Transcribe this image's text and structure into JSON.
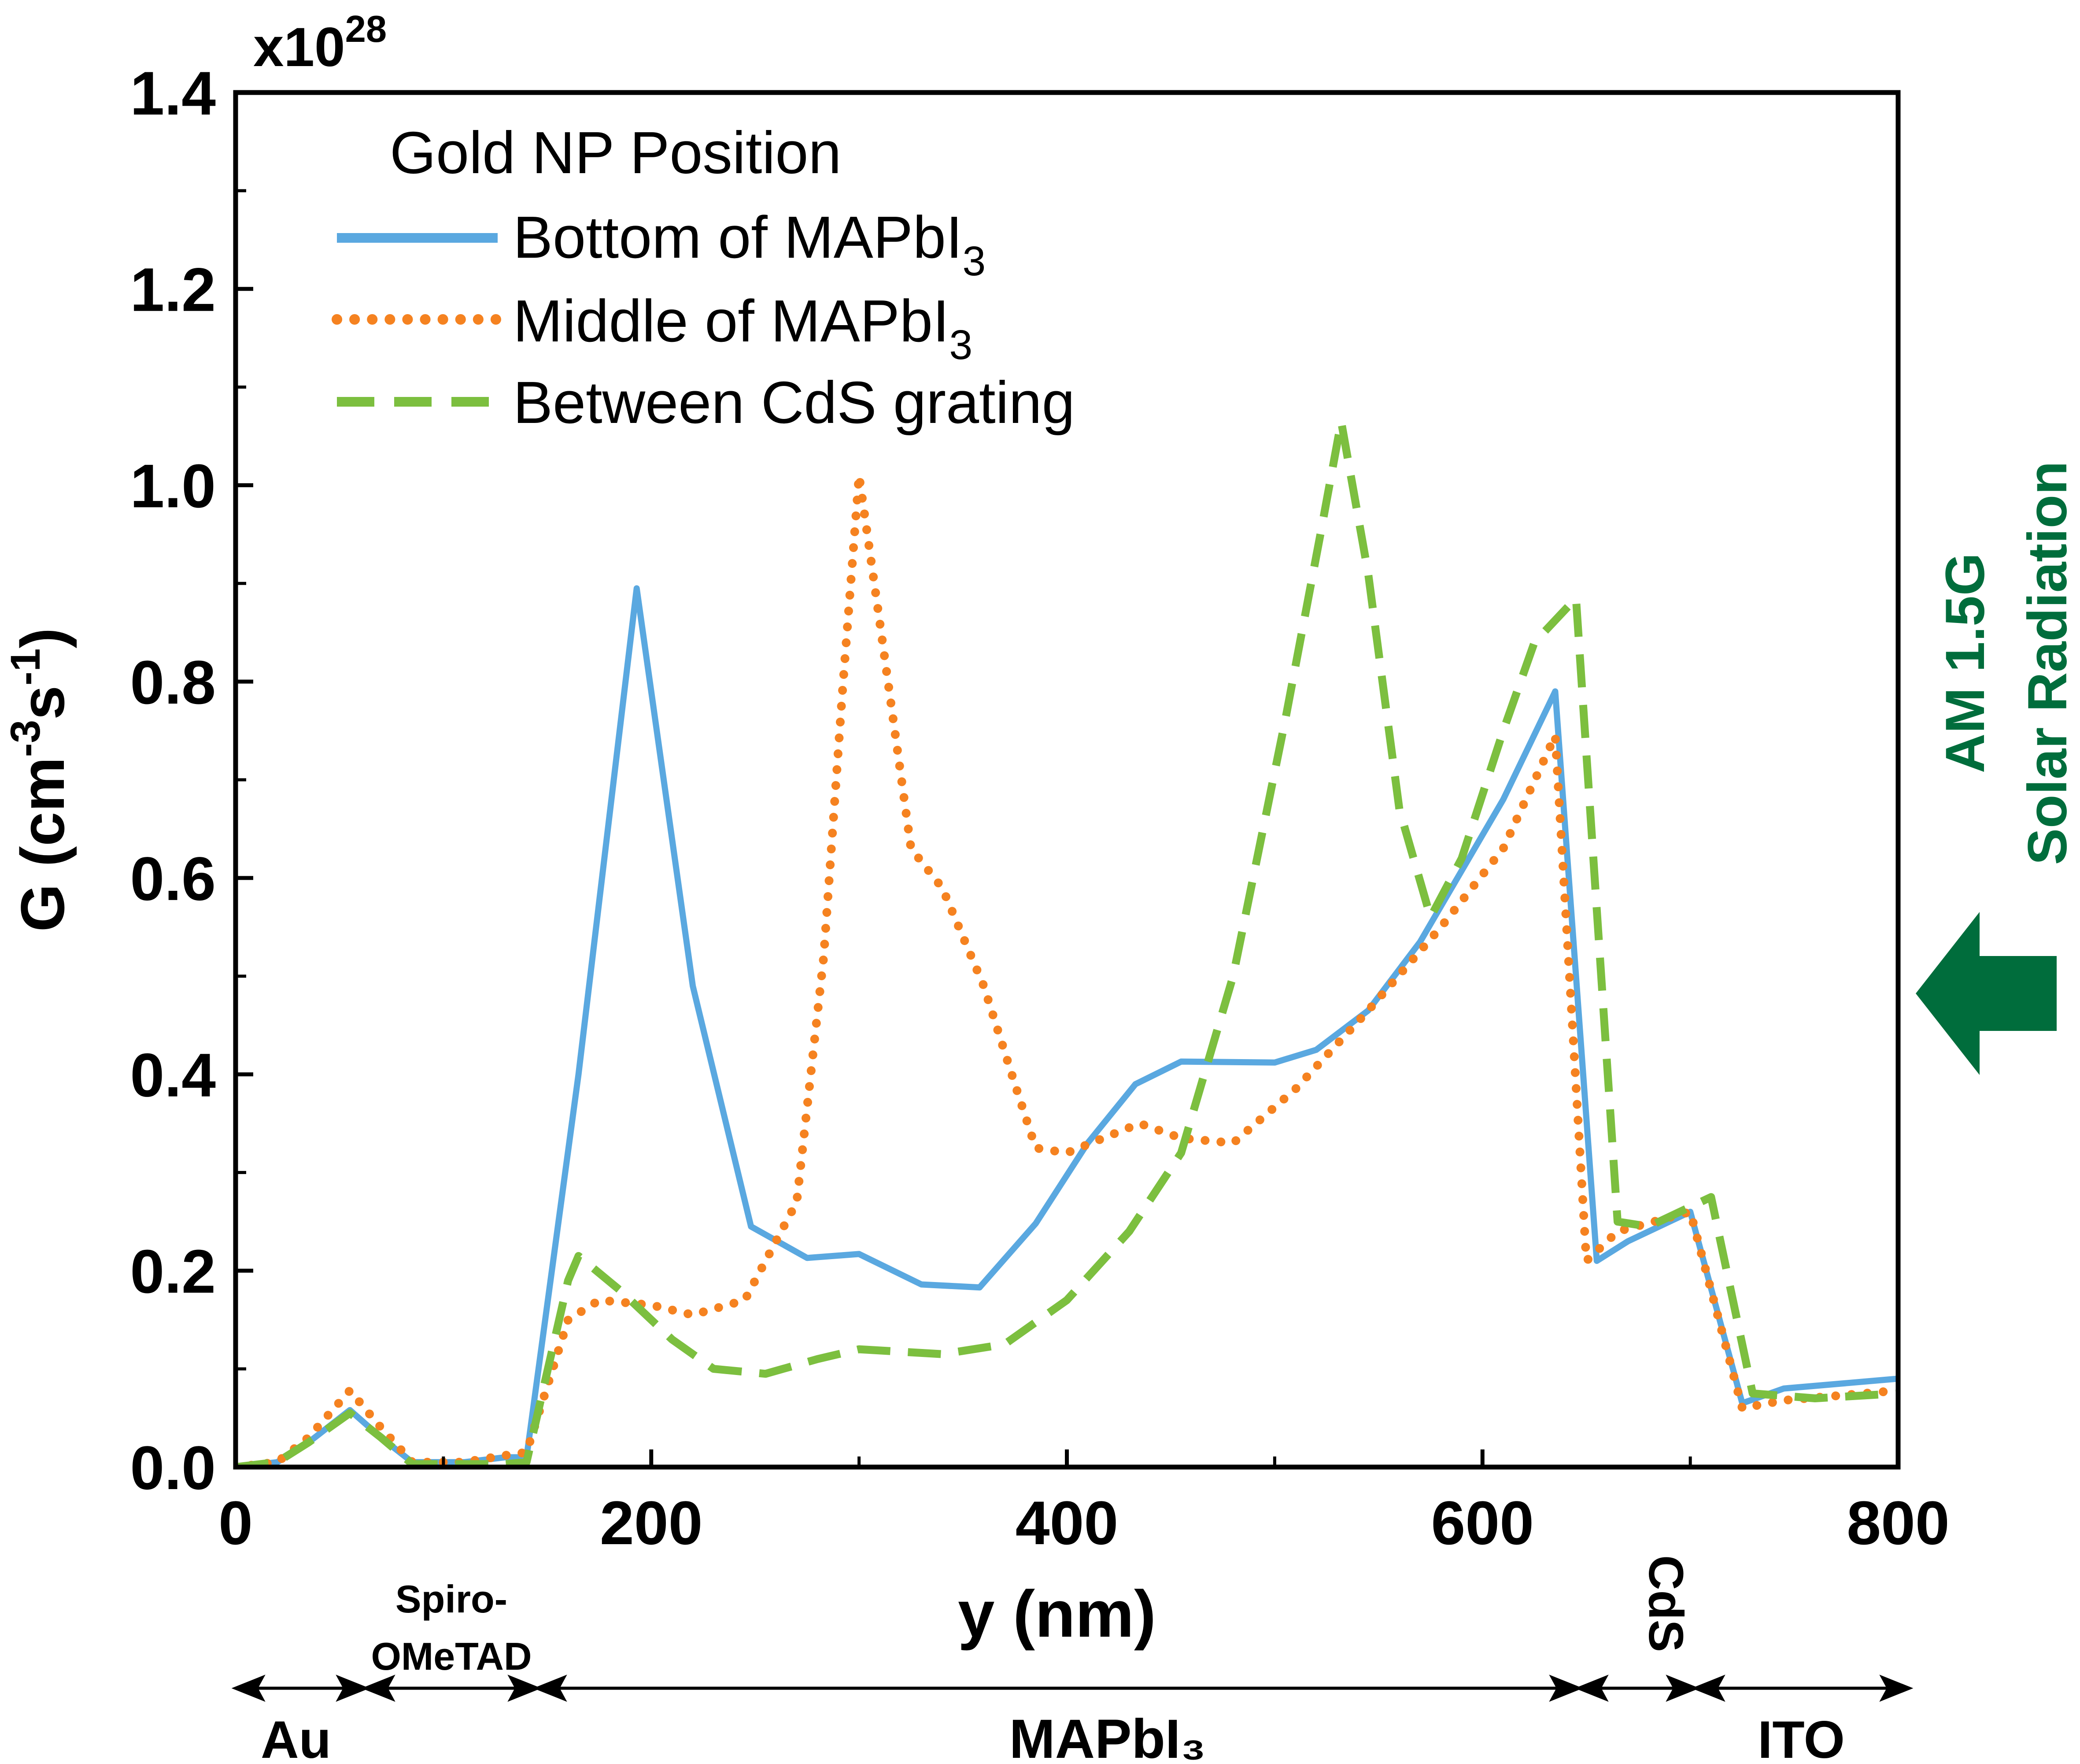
{
  "chart_data": {
    "type": "line",
    "x_label": "y (nm)",
    "y_label_main": "G (cm",
    "y_label_sup1": "-3",
    "y_label_mid": "s",
    "y_label_sup2": "-1",
    "y_label_close": ")",
    "multiplier_base": "x10",
    "multiplier_exp": "28",
    "xlim": [
      0,
      800
    ],
    "ylim": [
      0,
      1.4
    ],
    "x_ticks": [
      0,
      200,
      400,
      600,
      800
    ],
    "x_tick_labels": [
      "0",
      "200",
      "400",
      "600",
      "800"
    ],
    "y_ticks": [
      0,
      0.2,
      0.4,
      0.6,
      0.8,
      1.0,
      1.2,
      1.4
    ],
    "y_tick_labels": [
      "0.0",
      "0.2",
      "0.4",
      "0.6",
      "0.8",
      "1.0",
      "1.2",
      "1.4"
    ],
    "legend": {
      "title": "Gold NP Position",
      "position": "top-left"
    },
    "series": [
      {
        "name": "Bottom of MAPbI",
        "name_sub": "3",
        "color": "#5aa8e0",
        "style": "solid",
        "points": [
          [
            0,
            0
          ],
          [
            20,
            0.005
          ],
          [
            35,
            0.025
          ],
          [
            55,
            0.058
          ],
          [
            70,
            0.03
          ],
          [
            85,
            0.005
          ],
          [
            110,
            0.005
          ],
          [
            130,
            0.01
          ],
          [
            140,
            0.01
          ],
          [
            165,
            0.4
          ],
          [
            193,
            0.895
          ],
          [
            220,
            0.49
          ],
          [
            248,
            0.245
          ],
          [
            275,
            0.213
          ],
          [
            300,
            0.217
          ],
          [
            330,
            0.186
          ],
          [
            358,
            0.183
          ],
          [
            385,
            0.248
          ],
          [
            410,
            0.33
          ],
          [
            433,
            0.39
          ],
          [
            455,
            0.413
          ],
          [
            500,
            0.412
          ],
          [
            520,
            0.425
          ],
          [
            545,
            0.465
          ],
          [
            570,
            0.535
          ],
          [
            610,
            0.68
          ],
          [
            635,
            0.79
          ],
          [
            655,
            0.21
          ],
          [
            670,
            0.23
          ],
          [
            700,
            0.26
          ],
          [
            725,
            0.065
          ],
          [
            745,
            0.08
          ],
          [
            800,
            0.09
          ]
        ]
      },
      {
        "name": "Middle of MAPbI",
        "name_sub": "3",
        "color": "#f58220",
        "style": "dotted",
        "points": [
          [
            0,
            0
          ],
          [
            20,
            0.005
          ],
          [
            35,
            0.03
          ],
          [
            55,
            0.078
          ],
          [
            70,
            0.04
          ],
          [
            85,
            0.005
          ],
          [
            110,
            0.005
          ],
          [
            130,
            0.012
          ],
          [
            140,
            0.015
          ],
          [
            160,
            0.15
          ],
          [
            175,
            0.17
          ],
          [
            200,
            0.165
          ],
          [
            220,
            0.155
          ],
          [
            245,
            0.17
          ],
          [
            270,
            0.27
          ],
          [
            283,
            0.52
          ],
          [
            292,
            0.79
          ],
          [
            300,
            1.01
          ],
          [
            310,
            0.86
          ],
          [
            325,
            0.63
          ],
          [
            340,
            0.59
          ],
          [
            360,
            0.49
          ],
          [
            375,
            0.39
          ],
          [
            385,
            0.325
          ],
          [
            400,
            0.32
          ],
          [
            435,
            0.35
          ],
          [
            455,
            0.335
          ],
          [
            480,
            0.33
          ],
          [
            510,
            0.385
          ],
          [
            545,
            0.465
          ],
          [
            580,
            0.55
          ],
          [
            610,
            0.63
          ],
          [
            635,
            0.745
          ],
          [
            650,
            0.21
          ],
          [
            665,
            0.24
          ],
          [
            700,
            0.26
          ],
          [
            725,
            0.06
          ],
          [
            745,
            0.068
          ],
          [
            800,
            0.078
          ]
        ]
      },
      {
        "name": "Between CdS grating",
        "name_sub": "",
        "color": "#7cbf3f",
        "style": "dashed",
        "points": [
          [
            0,
            0
          ],
          [
            20,
            0.005
          ],
          [
            35,
            0.025
          ],
          [
            55,
            0.055
          ],
          [
            70,
            0.03
          ],
          [
            85,
            0.003
          ],
          [
            110,
            0.003
          ],
          [
            130,
            0.003
          ],
          [
            140,
            0.005
          ],
          [
            160,
            0.19
          ],
          [
            165,
            0.215
          ],
          [
            185,
            0.18
          ],
          [
            210,
            0.13
          ],
          [
            230,
            0.1
          ],
          [
            255,
            0.095
          ],
          [
            280,
            0.11
          ],
          [
            300,
            0.12
          ],
          [
            340,
            0.115
          ],
          [
            370,
            0.125
          ],
          [
            400,
            0.17
          ],
          [
            430,
            0.24
          ],
          [
            455,
            0.32
          ],
          [
            480,
            0.5
          ],
          [
            505,
            0.76
          ],
          [
            522,
            0.95
          ],
          [
            532,
            1.065
          ],
          [
            545,
            0.91
          ],
          [
            560,
            0.67
          ],
          [
            575,
            0.56
          ],
          [
            590,
            0.62
          ],
          [
            610,
            0.75
          ],
          [
            625,
            0.84
          ],
          [
            645,
            0.885
          ],
          [
            665,
            0.25
          ],
          [
            680,
            0.245
          ],
          [
            710,
            0.275
          ],
          [
            730,
            0.075
          ],
          [
            760,
            0.07
          ],
          [
            800,
            0.075
          ]
        ]
      }
    ]
  },
  "layers": {
    "labels": [
      "Au",
      "Spiro-",
      "OMeTAD",
      "MAPbI₃",
      "CdS",
      "ITO"
    ]
  },
  "radiation": {
    "line1": "AM 1.5G",
    "line2": "Solar Radiation",
    "color": "#006d3c"
  }
}
